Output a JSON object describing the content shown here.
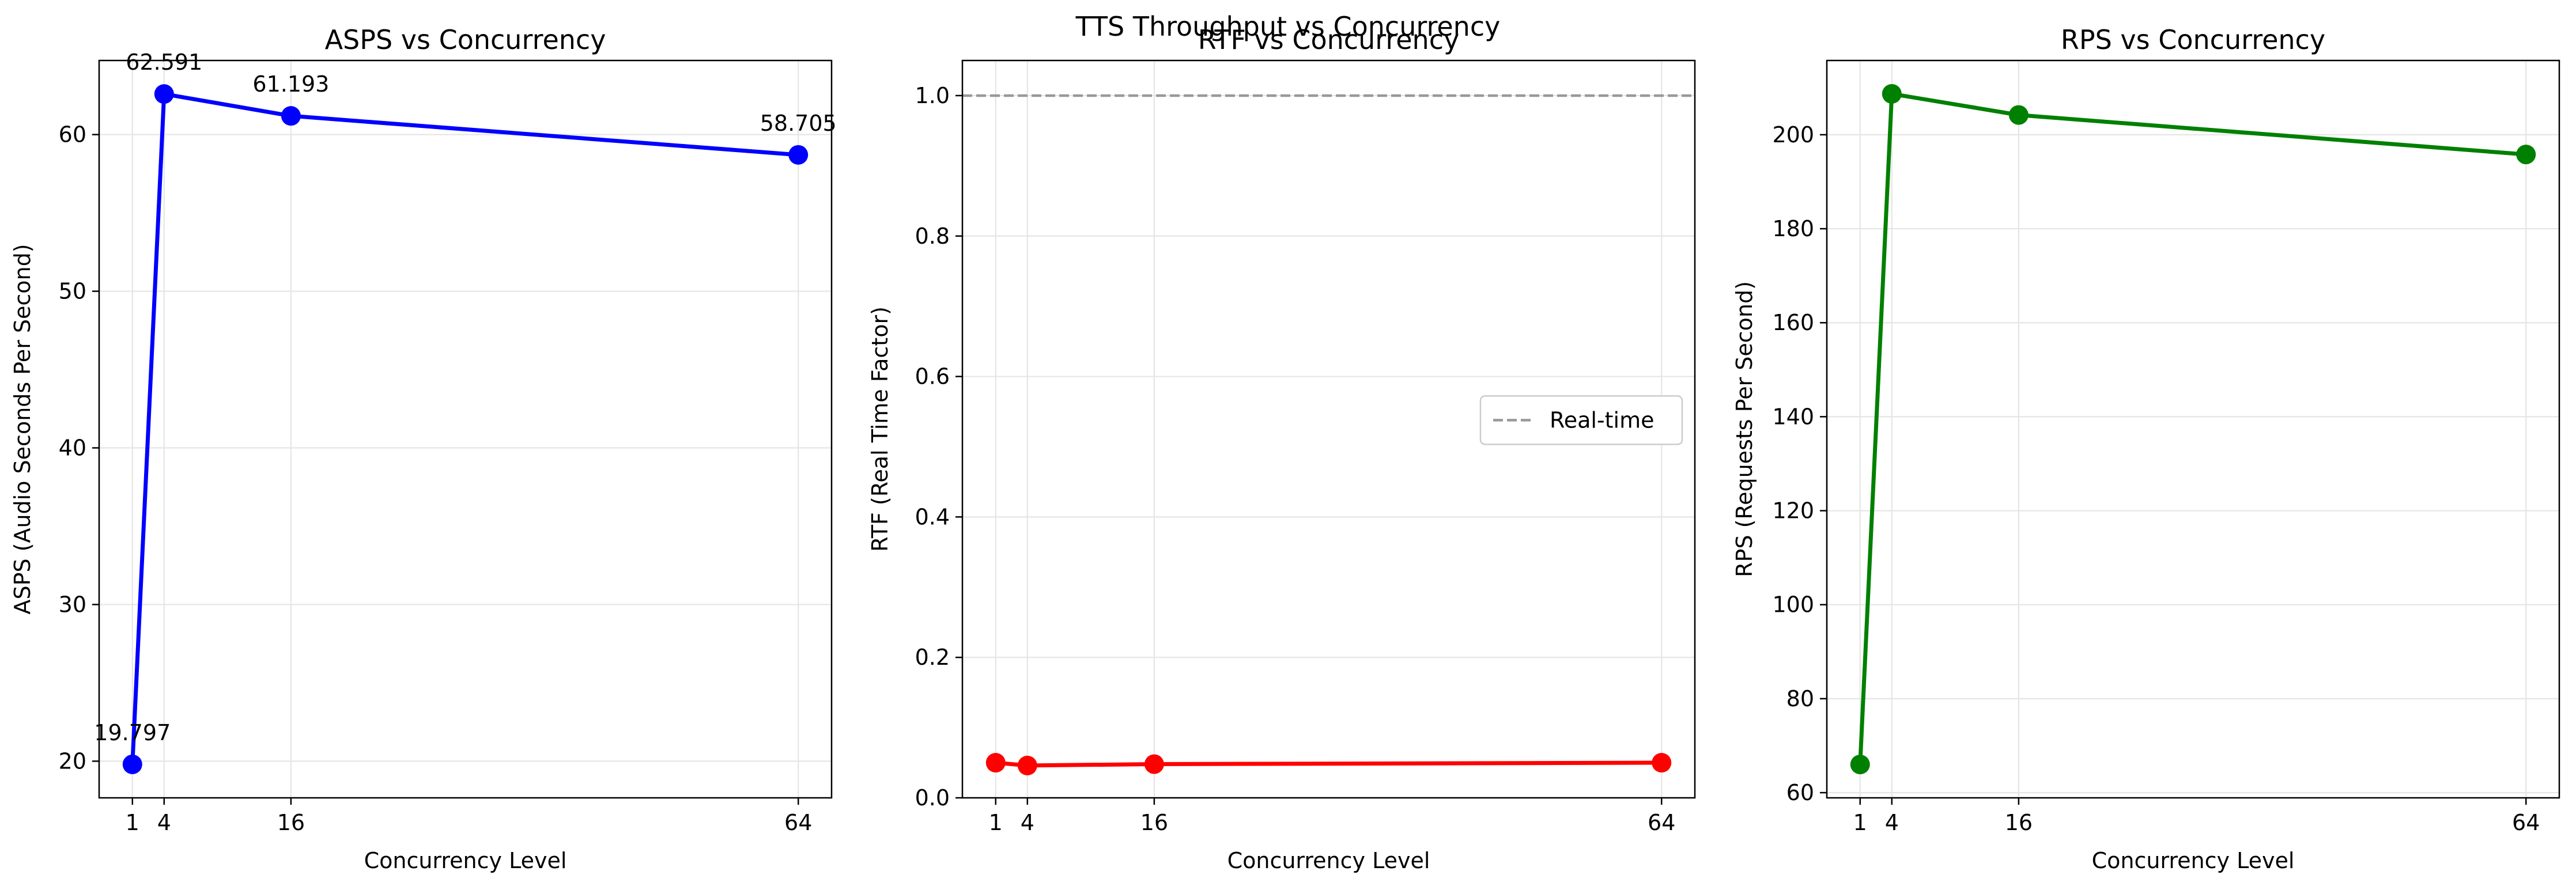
{
  "figure": {
    "title": "TTS Throughput vs Concurrency"
  },
  "colors": {
    "asps": "#0000ff",
    "rtf": "#ff0000",
    "rps": "#008000",
    "reference": "#999999",
    "grid": "#e5e5e5",
    "axis": "#000000"
  },
  "chart_data": [
    {
      "type": "line",
      "title": "ASPS vs Concurrency",
      "xlabel": "Concurrency Level",
      "ylabel": "ASPS (Audio Seconds Per Second)",
      "x": [
        1,
        4,
        16,
        64
      ],
      "series": [
        {
          "values": [
            19.797,
            62.591,
            61.193,
            58.705
          ],
          "color": "#0000ff"
        }
      ],
      "data_labels": [
        "19.797",
        "62.591",
        "61.193",
        "58.705"
      ],
      "xlim": [
        -2.15,
        67.15
      ],
      "ylim": [
        17.66,
        64.73
      ],
      "xticks": [
        1,
        4,
        16,
        64
      ],
      "yticks": [
        20,
        30,
        40,
        50,
        60
      ],
      "grid": true
    },
    {
      "type": "line",
      "title": "RTF vs Concurrency",
      "xlabel": "Concurrency Level",
      "ylabel": "RTF (Real Time Factor)",
      "x": [
        1,
        4,
        16,
        64
      ],
      "series": [
        {
          "values": [
            0.05,
            0.046,
            0.048,
            0.05
          ],
          "color": "#ff0000"
        }
      ],
      "reference_line": {
        "y": 1.0,
        "label": "Real-time",
        "style": "dashed",
        "color": "#999999"
      },
      "legend": {
        "position": "center-right",
        "entries": [
          "Real-time"
        ]
      },
      "xlim": [
        -2.15,
        67.15
      ],
      "ylim": [
        0.0,
        1.05
      ],
      "xticks": [
        1,
        4,
        16,
        64
      ],
      "yticks": [
        0.0,
        0.2,
        0.4,
        0.6,
        0.8,
        1.0
      ],
      "ytick_labels": [
        "0.0",
        "0.2",
        "0.4",
        "0.6",
        "0.8",
        "1.0"
      ],
      "grid": true
    },
    {
      "type": "line",
      "title": "RPS vs Concurrency",
      "xlabel": "Concurrency Level",
      "ylabel": "RPS (Requests Per Second)",
      "x": [
        1,
        4,
        16,
        64
      ],
      "series": [
        {
          "values": [
            66,
            208.7,
            204.2,
            195.8
          ],
          "color": "#008000"
        }
      ],
      "xlim": [
        -2.15,
        67.15
      ],
      "ylim": [
        58.9,
        215.8
      ],
      "xticks": [
        1,
        4,
        16,
        64
      ],
      "yticks": [
        60,
        80,
        100,
        120,
        140,
        160,
        180,
        200
      ],
      "grid": true
    }
  ]
}
